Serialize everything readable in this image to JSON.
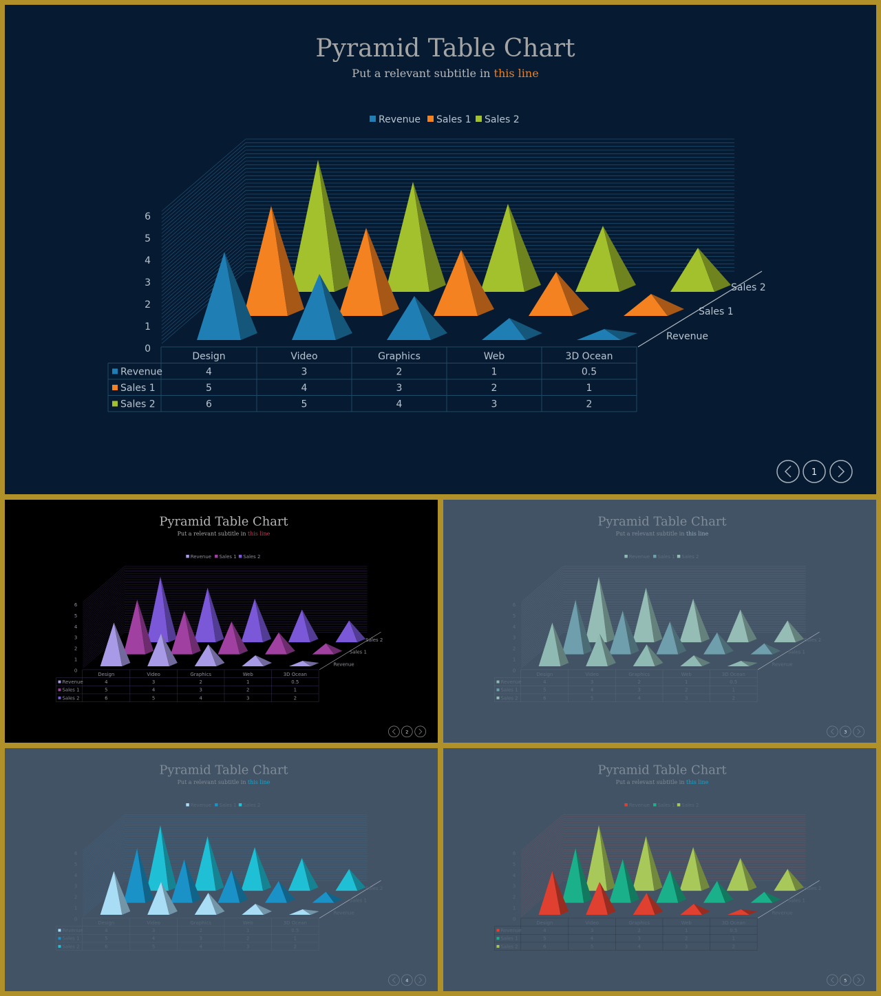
{
  "slides": [
    {
      "title": "Pyramid Table Chart",
      "subtitle_prefix": "Put a relevant subtitle in ",
      "subtitle_highlight": "this line",
      "page_number": "1",
      "colors": {
        "bg": "#061a31",
        "title": "#a5a5a5",
        "subtitle": "#b7b7b7",
        "highlight": "#f07f1c",
        "grid": "#1e4d6e",
        "text": "#b8c4d0",
        "table": "#1f4a68",
        "navcircle": "#a9b2bc",
        "series": [
          "#1f7fb5",
          "#f58220",
          "#a3c12c"
        ]
      }
    },
    {
      "title": "Pyramid Table Chart",
      "subtitle_prefix": "Put a relevant subtitle in ",
      "subtitle_highlight": "this line",
      "page_number": "2",
      "colors": {
        "bg": "#000000",
        "title": "#b5b5b5",
        "subtitle": "#a8a8a8",
        "highlight": "#c0395d",
        "grid": "#3c2a5c",
        "text": "#8f8f99",
        "table": "#3a2f55",
        "navcircle": "#8e8e8e",
        "series": [
          "#a89ae6",
          "#a040a0",
          "#7a58d8"
        ]
      }
    },
    {
      "title": "Pyramid Table Chart",
      "subtitle_prefix": "Put a relevant subtitle in ",
      "subtitle_highlight": "this line",
      "page_number": "3",
      "colors": {
        "bg": "#435366",
        "title": "#7f8c98",
        "subtitle": "#7e8995",
        "highlight": "#8fa6b4",
        "grid": "#5d6f80",
        "text": "#5c6d7d",
        "table": "#56687a",
        "navcircle": "#6f7f8e",
        "series": [
          "#8fbab3",
          "#6f9eac",
          "#95bdb6"
        ]
      }
    },
    {
      "title": "Pyramid Table Chart",
      "subtitle_prefix": "Put a relevant subtitle in ",
      "subtitle_highlight": "this line",
      "page_number": "4",
      "colors": {
        "bg": "#435366",
        "title": "#7f8c98",
        "subtitle": "#7e8995",
        "highlight": "#1aa3c9",
        "grid": "#3d6a8c",
        "text": "#56687a",
        "table": "#506276",
        "navcircle": "#6f7f8e",
        "series": [
          "#a8ddf5",
          "#1a92c8",
          "#1fc0d5"
        ]
      }
    },
    {
      "title": "Pyramid Table Chart",
      "subtitle_prefix": "Put a relevant subtitle in ",
      "subtitle_highlight": "this line",
      "page_number": "5",
      "colors": {
        "bg": "#435366",
        "title": "#7f8c98",
        "subtitle": "#7e8995",
        "highlight": "#1aa3c9",
        "grid": "#7a5660",
        "text": "#56687a",
        "table": "#2f3a48",
        "navcircle": "#6f7f8e",
        "series": [
          "#e04030",
          "#1ab08a",
          "#a8c95a"
        ]
      }
    }
  ],
  "chart_data": {
    "type": "bar",
    "subtype": "3d-pyramid",
    "categories": [
      "Design",
      "Video",
      "Graphics",
      "Web",
      "3D Ocean"
    ],
    "series": [
      {
        "name": "Revenue",
        "values": [
          4,
          3,
          2,
          1,
          0.5
        ]
      },
      {
        "name": "Sales 1",
        "values": [
          5,
          4,
          3,
          2,
          1
        ]
      },
      {
        "name": "Sales 2",
        "values": [
          6,
          5,
          4,
          3,
          2
        ]
      }
    ],
    "value_labels": [
      [
        "4",
        "3",
        "2",
        "1",
        "0.5"
      ],
      [
        "5",
        "4",
        "3",
        "2",
        "1"
      ],
      [
        "6",
        "5",
        "4",
        "3",
        "2"
      ]
    ],
    "yticks": [
      "0",
      "1",
      "2",
      "3",
      "4",
      "5",
      "6"
    ],
    "ylim": [
      0,
      6
    ],
    "data_table": true,
    "legend_position": "top"
  }
}
